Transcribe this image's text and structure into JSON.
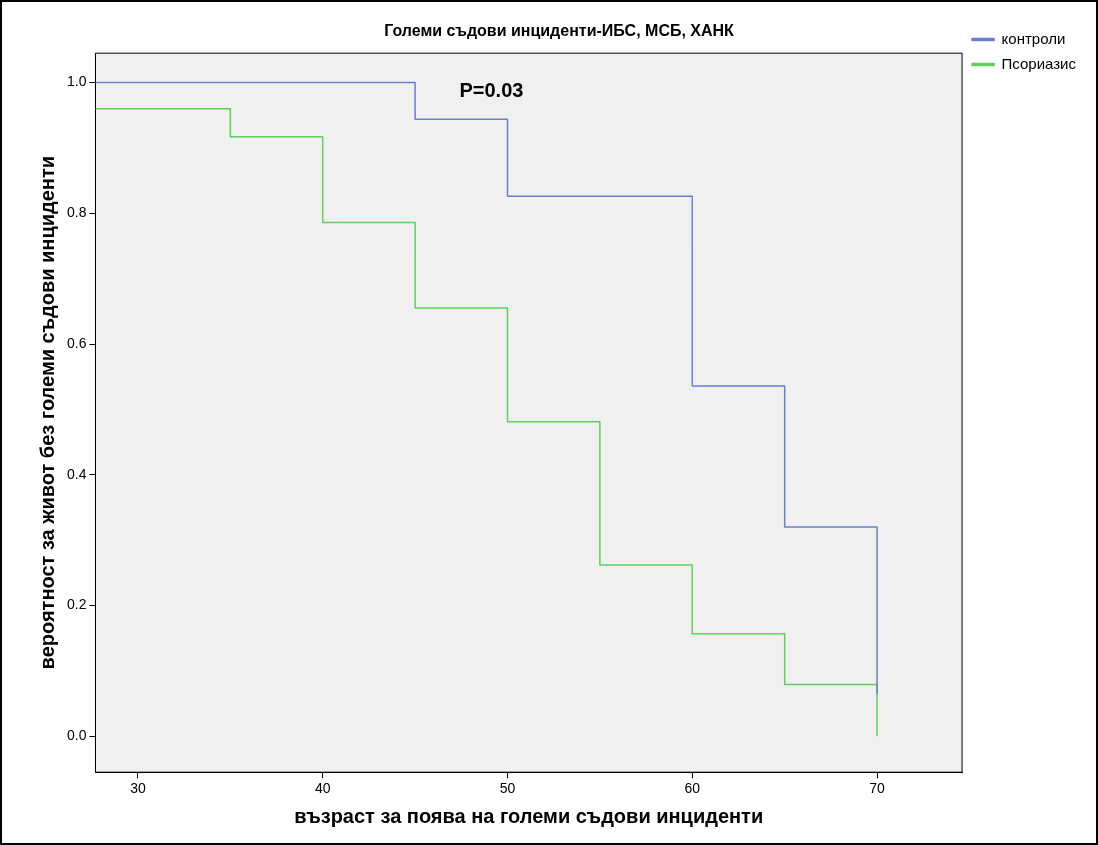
{
  "chart_data": {
    "type": "step",
    "title": "Големи съдови инциденти-ИБС, МСБ, ХАНК",
    "xlabel": "възраст за поява на големи съдови инциденти",
    "ylabel": "вероятност за живот без големи съдови инциденти",
    "series": [
      {
        "name": "контроли",
        "color": "#6b7fd0",
        "x": [
          27.7,
          45,
          50,
          60,
          65,
          70
        ],
        "values": [
          1.0,
          0.944,
          0.826,
          0.536,
          0.32,
          0.065
        ]
      },
      {
        "name": "Псориазис",
        "color": "#5fcf5f",
        "x": [
          27.7,
          35,
          40,
          45,
          50,
          55,
          60,
          65,
          70
        ],
        "values": [
          0.96,
          0.917,
          0.786,
          0.655,
          0.481,
          0.262,
          0.157,
          0.079,
          0.0
        ]
      }
    ],
    "xlim": [
      27.7,
      74.6
    ],
    "xticks": [
      30,
      40,
      50,
      60,
      70
    ],
    "ylim": [
      -0.055,
      1.045
    ],
    "yticks": [
      {
        "value": 0,
        "label": "0.0"
      },
      {
        "value": 0.2,
        "label": "0.2"
      },
      {
        "value": 0.4,
        "label": "0.4"
      },
      {
        "value": 0.6,
        "label": "0.6"
      },
      {
        "value": 0.8,
        "label": "0.8"
      },
      {
        "value": 1,
        "label": "1.0"
      }
    ],
    "legend": "top right",
    "annotations": [
      "P=0.03"
    ]
  }
}
